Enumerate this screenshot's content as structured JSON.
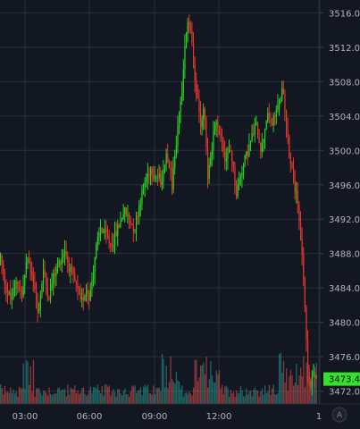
{
  "chart_data": {
    "type": "candlestick",
    "title": "",
    "xlabel": "",
    "ylabel": "",
    "ylim": [
      3470.5,
      3517.5
    ],
    "y_ticks": [
      "3516.0",
      "3512.0",
      "3508.0",
      "3504.0",
      "3500.0",
      "3496.0",
      "3492.0",
      "3488.0",
      "3484.0",
      "3480.0",
      "3476.0",
      "3472.0"
    ],
    "x_ticks": [
      "03:00",
      "06:00",
      "09:00",
      "12:00",
      "1"
    ],
    "last_price": "3473.4",
    "grid": true,
    "price_keypoints": [
      {
        "t": 0,
        "p": 3487.5
      },
      {
        "t": 6,
        "p": 3484.0
      },
      {
        "t": 12,
        "p": 3482.5
      },
      {
        "t": 18,
        "p": 3485.0
      },
      {
        "t": 24,
        "p": 3483.0
      },
      {
        "t": 30,
        "p": 3487.5
      },
      {
        "t": 36,
        "p": 3485.5
      },
      {
        "t": 42,
        "p": 3481.0
      },
      {
        "t": 48,
        "p": 3486.0
      },
      {
        "t": 54,
        "p": 3483.0
      },
      {
        "t": 60,
        "p": 3485.5
      },
      {
        "t": 66,
        "p": 3487.0
      },
      {
        "t": 72,
        "p": 3488.5
      },
      {
        "t": 78,
        "p": 3486.0
      },
      {
        "t": 84,
        "p": 3484.5
      },
      {
        "t": 90,
        "p": 3482.0
      },
      {
        "t": 96,
        "p": 3484.0
      },
      {
        "t": 100,
        "p": 3483.0
      },
      {
        "t": 106,
        "p": 3488.0
      },
      {
        "t": 112,
        "p": 3491.0
      },
      {
        "t": 118,
        "p": 3490.0
      },
      {
        "t": 124,
        "p": 3489.0
      },
      {
        "t": 130,
        "p": 3490.5
      },
      {
        "t": 138,
        "p": 3493.0
      },
      {
        "t": 144,
        "p": 3492.0
      },
      {
        "t": 150,
        "p": 3491.0
      },
      {
        "t": 156,
        "p": 3494.0
      },
      {
        "t": 162,
        "p": 3496.5
      },
      {
        "t": 168,
        "p": 3498.0
      },
      {
        "t": 174,
        "p": 3497.0
      },
      {
        "t": 180,
        "p": 3496.5
      },
      {
        "t": 186,
        "p": 3500.0
      },
      {
        "t": 192,
        "p": 3496.0
      },
      {
        "t": 196,
        "p": 3500.0
      },
      {
        "t": 200,
        "p": 3504.0
      },
      {
        "t": 204,
        "p": 3508.0
      },
      {
        "t": 208,
        "p": 3514.0
      },
      {
        "t": 212,
        "p": 3515.0
      },
      {
        "t": 216,
        "p": 3510.0
      },
      {
        "t": 220,
        "p": 3506.0
      },
      {
        "t": 224,
        "p": 3503.0
      },
      {
        "t": 228,
        "p": 3505.5
      },
      {
        "t": 232,
        "p": 3497.0
      },
      {
        "t": 236,
        "p": 3500.0
      },
      {
        "t": 240,
        "p": 3503.0
      },
      {
        "t": 246,
        "p": 3502.0
      },
      {
        "t": 252,
        "p": 3499.0
      },
      {
        "t": 258,
        "p": 3500.0
      },
      {
        "t": 264,
        "p": 3495.0
      },
      {
        "t": 268,
        "p": 3497.0
      },
      {
        "t": 274,
        "p": 3499.0
      },
      {
        "t": 280,
        "p": 3501.0
      },
      {
        "t": 286,
        "p": 3503.0
      },
      {
        "t": 292,
        "p": 3500.0
      },
      {
        "t": 298,
        "p": 3504.0
      },
      {
        "t": 304,
        "p": 3503.0
      },
      {
        "t": 310,
        "p": 3505.0
      },
      {
        "t": 316,
        "p": 3507.0
      },
      {
        "t": 320,
        "p": 3503.0
      },
      {
        "t": 324,
        "p": 3499.0
      },
      {
        "t": 328,
        "p": 3497.0
      },
      {
        "t": 332,
        "p": 3494.0
      },
      {
        "t": 336,
        "p": 3490.0
      },
      {
        "t": 340,
        "p": 3484.0
      },
      {
        "t": 343,
        "p": 3476.0
      },
      {
        "t": 346,
        "p": 3472.5
      },
      {
        "t": 350,
        "p": 3474.0
      },
      {
        "t": 355,
        "p": 3473.4
      }
    ]
  }
}
